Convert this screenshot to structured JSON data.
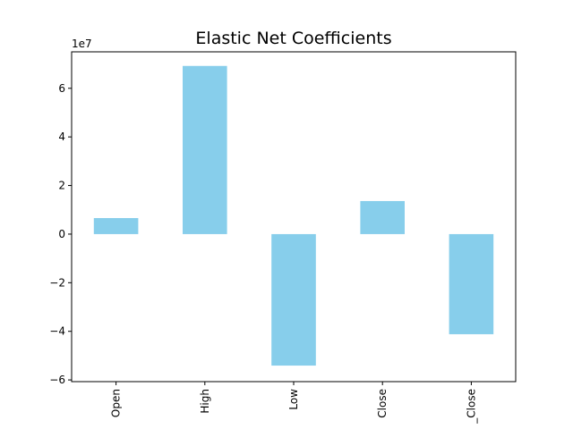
{
  "chart_data": {
    "type": "bar",
    "title": "Elastic Net Coefficients",
    "y_offset_label": "1e7",
    "categories": [
      "Open",
      "High",
      "Low",
      "Close",
      "_Close"
    ],
    "values": [
      0.66,
      6.92,
      -5.41,
      1.36,
      -4.12
    ],
    "color": "#87ceeb",
    "ylim": [
      -6.07,
      7.5
    ],
    "yticks": [
      {
        "value": -6,
        "label": "−6"
      },
      {
        "value": -4,
        "label": "−4"
      },
      {
        "value": -2,
        "label": "−2"
      },
      0,
      2,
      4,
      6
    ],
    "grid": false
  }
}
